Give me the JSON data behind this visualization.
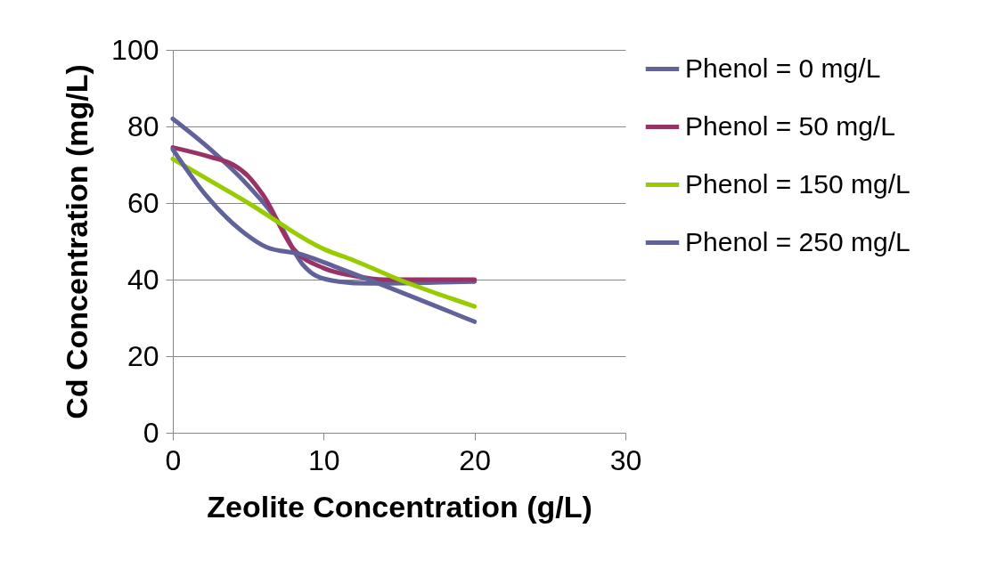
{
  "chart_data": {
    "type": "line",
    "xlabel": "Zeolite Concentration (g/L)",
    "ylabel": "Cd Concentration (mg/L)",
    "xlim": [
      0,
      30
    ],
    "xticks": [
      0,
      10,
      20,
      30
    ],
    "ylim": [
      0,
      100
    ],
    "yticks": [
      0,
      20,
      40,
      60,
      80,
      100
    ],
    "grid": "y",
    "legend": "right",
    "line_style": "solid",
    "series": [
      {
        "name": "Phenol = 0 mg/L",
        "color": "#62629b",
        "x": [
          0,
          2.5,
          5,
          7,
          8.6,
          9.5,
          11,
          13,
          20
        ],
        "values": [
          82,
          74,
          64.5,
          55,
          44,
          41,
          39.5,
          39,
          39.5
        ]
      },
      {
        "name": "Phenol = 50 mg/L",
        "color": "#993366",
        "x": [
          0,
          2.5,
          4,
          5,
          6,
          8,
          10,
          12,
          14,
          20
        ],
        "values": [
          74.5,
          72,
          70,
          67,
          62,
          48,
          43,
          41,
          40,
          40
        ]
      },
      {
        "name": "Phenol = 150 mg/L",
        "color": "#99cc00",
        "x": [
          0,
          5,
          10,
          12,
          15,
          20
        ],
        "values": [
          71.5,
          60,
          48,
          45,
          40,
          33
        ]
      },
      {
        "name": "Phenol = 250 mg/L",
        "color": "#62629b",
        "x": [
          0,
          2.2,
          4.8,
          6.2,
          8.6,
          11,
          20
        ],
        "values": [
          74,
          62,
          52,
          48.5,
          46.5,
          43,
          29
        ]
      }
    ]
  }
}
